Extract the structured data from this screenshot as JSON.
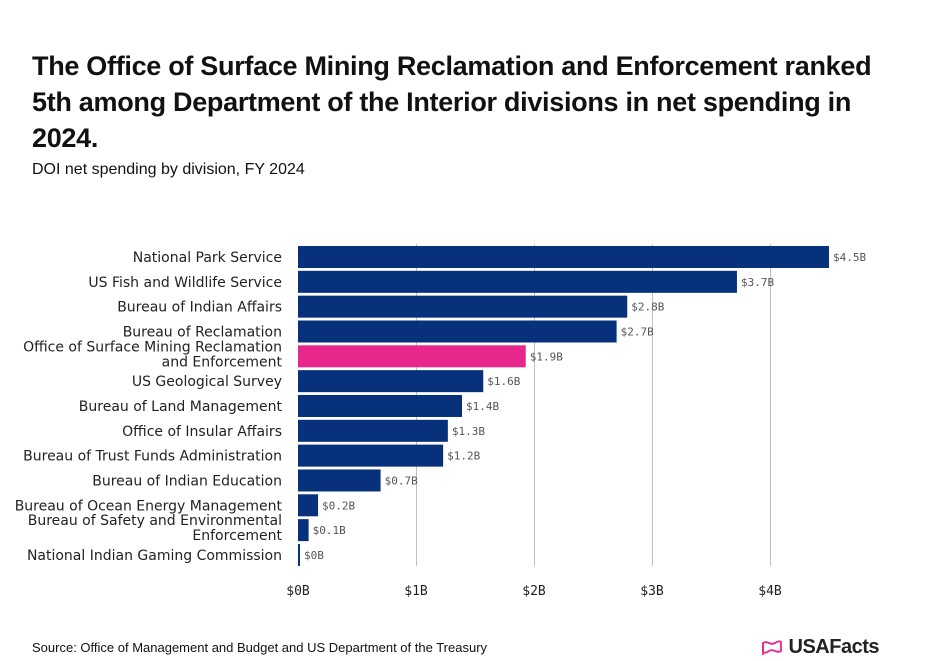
{
  "header": {
    "title": "The Office of Surface Mining Reclamation and Enforcement ranked 5th among Department of the Interior divisions in net spending in 2024.",
    "subtitle": "DOI net spending by division, FY 2024"
  },
  "footer": {
    "source": "Source: Office of Management and Budget and US Department of the Treasury",
    "logo_text": "USAFacts"
  },
  "colors": {
    "bar": "#07317a",
    "highlight": "#e8278c",
    "logo_icon": "#e8278c"
  },
  "chart_data": {
    "type": "bar",
    "orientation": "horizontal",
    "title": "",
    "xlabel": "",
    "ylabel": "",
    "xlim": [
      0,
      4.5
    ],
    "grid": true,
    "legend": "none",
    "highlight_index": 4,
    "categories": [
      [
        "National Park Service"
      ],
      [
        "US Fish and Wildlife Service"
      ],
      [
        "Bureau of Indian Affairs"
      ],
      [
        "Bureau of Reclamation"
      ],
      [
        "Office of Surface Mining Reclamation",
        "and Enforcement"
      ],
      [
        "US Geological Survey"
      ],
      [
        "Bureau of Land Management"
      ],
      [
        "Office of Insular Affairs"
      ],
      [
        "Bureau of Trust Funds Administration"
      ],
      [
        "Bureau of Indian Education"
      ],
      [
        "Bureau of Ocean Energy Management"
      ],
      [
        "Bureau of Safety and Environmental",
        "Enforcement"
      ],
      [
        "National Indian Gaming Commission"
      ]
    ],
    "values": [
      4.5,
      3.72,
      2.79,
      2.7,
      1.93,
      1.57,
      1.39,
      1.27,
      1.23,
      0.7,
      0.17,
      0.09,
      0.01
    ],
    "value_labels": [
      "$4.5B",
      "$3.7B",
      "$2.8B",
      "$2.7B",
      "$1.9B",
      "$1.6B",
      "$1.4B",
      "$1.3B",
      "$1.2B",
      "$0.7B",
      "$0.2B",
      "$0.1B",
      "$0B"
    ],
    "x_ticks": [
      0,
      1,
      2,
      3,
      4
    ],
    "x_tick_labels": [
      "$0B",
      "$1B",
      "$2B",
      "$3B",
      "$4B"
    ]
  }
}
